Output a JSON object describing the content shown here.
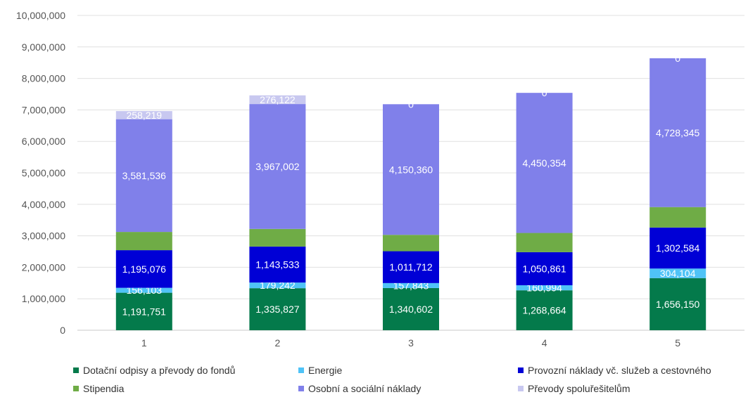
{
  "chart_data": {
    "type": "bar",
    "stacked": true,
    "categories": [
      "1",
      "2",
      "3",
      "4",
      "5"
    ],
    "ylim": [
      0,
      10000000
    ],
    "yticks": [
      "0",
      "1,000,000",
      "2,000,000",
      "3,000,000",
      "4,000,000",
      "5,000,000",
      "6,000,000",
      "7,000,000",
      "8,000,000",
      "9,000,000",
      "10,000,000"
    ],
    "grid": true,
    "legend_position": "bottom",
    "series": [
      {
        "name": "Dotační odpisy a převody do fondů",
        "color": "#047a4b",
        "values": [
          1191751,
          1335827,
          1340602,
          1268664,
          1656150
        ],
        "labels": [
          "1,191,751",
          "1,335,827",
          "1,340,602",
          "1,268,664",
          "1,656,150"
        ]
      },
      {
        "name": "Energie",
        "color": "#4fc3f7",
        "values": [
          156103,
          179242,
          157843,
          160994,
          304104
        ],
        "labels": [
          "156,103",
          "179,242",
          "157,843",
          "160,994",
          "304,104"
        ]
      },
      {
        "name": "Provozní náklady vč. služeb a cestovného",
        "color": "#0000d6",
        "values": [
          1195076,
          1143533,
          1011712,
          1050861,
          1302584
        ],
        "labels": [
          "1,195,076",
          "1,143,533",
          "1,011,712",
          "1,050,861",
          "1,302,584"
        ]
      },
      {
        "name": "Stipendia",
        "color": "#6fac46",
        "values": [
          580000,
          560000,
          520000,
          610000,
          650000
        ],
        "labels": [
          "",
          "",
          "",
          "",
          ""
        ]
      },
      {
        "name": "Osobní a sociální náklady",
        "color": "#8080ea",
        "values": [
          3581536,
          3967002,
          4150360,
          4450354,
          4728345
        ],
        "labels": [
          "3,581,536",
          "3,967,002",
          "4,150,360",
          "4,450,354",
          "4,728,345"
        ]
      },
      {
        "name": "Převody spoluřešitelům",
        "color": "#c8c8f0",
        "values": [
          258219,
          276122,
          0,
          0,
          0
        ],
        "labels": [
          "258,219",
          "276,122",
          "0",
          "0",
          "0"
        ]
      }
    ]
  }
}
